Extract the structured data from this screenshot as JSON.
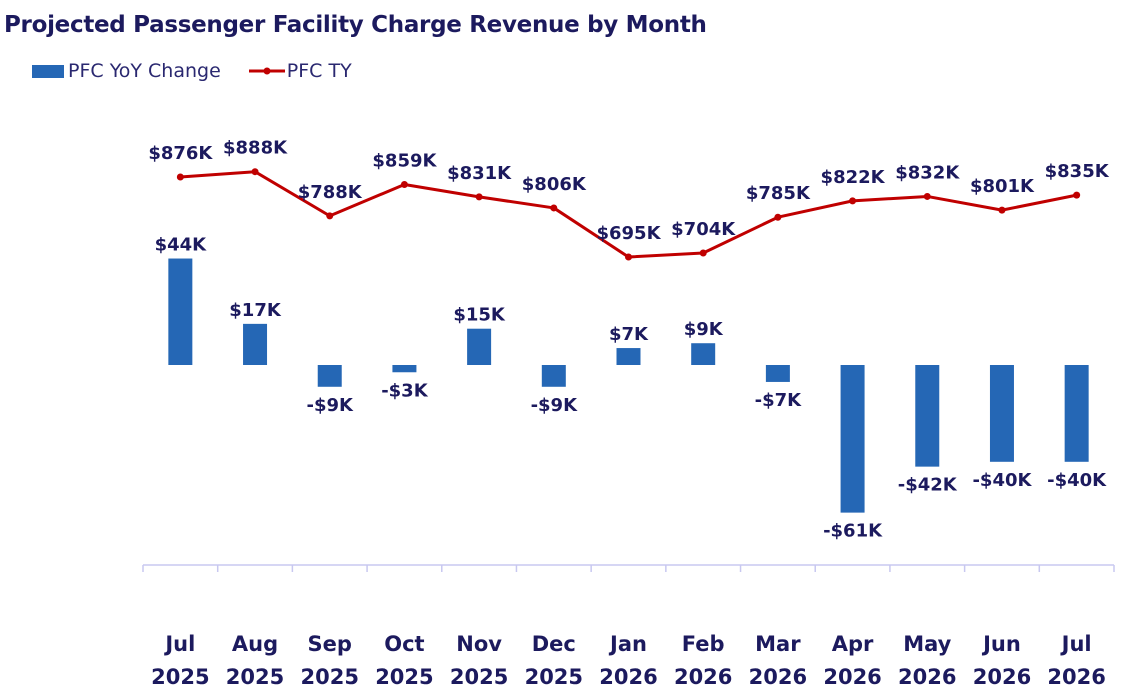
{
  "chart_data": {
    "type": "bar+line",
    "title": "Projected Passenger Facility Charge Revenue by Month",
    "categories": [
      [
        "Jul",
        "2025"
      ],
      [
        "Aug",
        "2025"
      ],
      [
        "Sep",
        "2025"
      ],
      [
        "Oct",
        "2025"
      ],
      [
        "Nov",
        "2025"
      ],
      [
        "Dec",
        "2025"
      ],
      [
        "Jan",
        "2026"
      ],
      [
        "Feb",
        "2026"
      ],
      [
        "Mar",
        "2026"
      ],
      [
        "Apr",
        "2026"
      ],
      [
        "May",
        "2026"
      ],
      [
        "Jun",
        "2026"
      ],
      [
        "Jul",
        "2026"
      ]
    ],
    "series": [
      {
        "name": "PFC YoY Change",
        "type": "bar",
        "color": "#2567b5",
        "unit": "$K",
        "values": [
          44,
          17,
          -9,
          -3,
          15,
          -9,
          7,
          9,
          -7,
          -61,
          -42,
          -40,
          -40
        ],
        "labels": [
          "$44K",
          "$17K",
          "-$9K",
          "-$3K",
          "$15K",
          "-$9K",
          "$7K",
          "$9K",
          "-$7K",
          "-$61K",
          "-$42K",
          "-$40K",
          "-$40K"
        ]
      },
      {
        "name": "PFC TY",
        "type": "line",
        "color": "#c00000",
        "unit": "$K",
        "values": [
          876,
          888,
          788,
          859,
          831,
          806,
          695,
          704,
          785,
          822,
          832,
          801,
          835
        ],
        "labels": [
          "$876K",
          "$888K",
          "$788K",
          "$859K",
          "$831K",
          "$806K",
          "$695K",
          "$704K",
          "$785K",
          "$822K",
          "$832K",
          "$801K",
          "$835K"
        ]
      }
    ],
    "legend_position": "top-left",
    "grid": false
  }
}
